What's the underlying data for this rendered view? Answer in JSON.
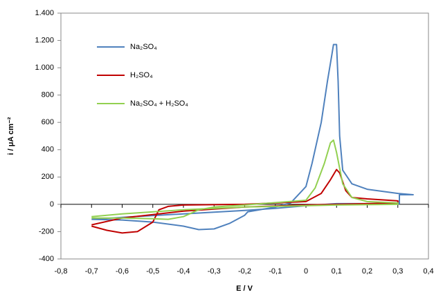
{
  "chart_data": {
    "type": "line",
    "xlabel": "E / V",
    "ylabel": "i / μA cm⁻²",
    "xlim": [
      -0.8,
      0.4
    ],
    "ylim": [
      -400,
      1400
    ],
    "xticks": [
      {
        "value": -0.8,
        "label": "-0,8"
      },
      {
        "value": -0.7,
        "label": "-0,7"
      },
      {
        "value": -0.6,
        "label": "-0,6"
      },
      {
        "value": -0.5,
        "label": "-0,5"
      },
      {
        "value": -0.4,
        "label": "-0,4"
      },
      {
        "value": -0.3,
        "label": "-0,3"
      },
      {
        "value": -0.2,
        "label": "-0,2"
      },
      {
        "value": -0.1,
        "label": "-0,1"
      },
      0,
      {
        "value": 0.1,
        "label": "0,1"
      },
      {
        "value": 0.2,
        "label": "0,2"
      },
      {
        "value": 0.3,
        "label": "0,3"
      },
      {
        "value": 0.4,
        "label": "0,4"
      }
    ],
    "yticks": [
      -400,
      -200,
      0,
      200,
      400,
      600,
      800,
      {
        "value": 1000,
        "label": "1.000"
      },
      {
        "value": 1200,
        "label": "1.200"
      },
      {
        "value": 1400,
        "label": "1.400"
      }
    ],
    "legend": "upper left",
    "series": [
      {
        "name": "Na₂SO₄",
        "color": "#4f81bd",
        "x": [
          -0.7,
          -0.6,
          -0.5,
          -0.4,
          -0.35,
          -0.3,
          -0.25,
          -0.2,
          -0.19,
          -0.1,
          -0.05,
          0,
          0.02,
          0.05,
          0.07,
          0.085,
          0.09,
          0.1,
          0.105,
          0.11,
          0.12,
          0.15,
          0.2,
          0.3,
          0.35,
          0.305,
          0.305,
          0.2,
          0.1,
          0,
          -0.1,
          -0.2,
          -0.4,
          -0.6,
          -0.7
        ],
        "values": [
          -110,
          -115,
          -130,
          -160,
          -185,
          -180,
          -140,
          -80,
          -55,
          -20,
          10,
          130,
          300,
          600,
          900,
          1100,
          1170,
          1170,
          900,
          500,
          250,
          150,
          110,
          80,
          70,
          70,
          5,
          5,
          5,
          -10,
          -30,
          -45,
          -70,
          -95,
          -110
        ]
      },
      {
        "name": "H₂SO₄",
        "color": "#c00000",
        "x": [
          -0.7,
          -0.65,
          -0.6,
          -0.55,
          -0.5,
          -0.48,
          -0.45,
          -0.4,
          -0.2,
          0,
          0.05,
          0.08,
          0.1,
          0.11,
          0.13,
          0.15,
          0.2,
          0.3,
          0.3,
          0.1,
          0,
          -0.2,
          -0.4,
          -0.6,
          -0.7
        ],
        "values": [
          -160,
          -190,
          -210,
          -200,
          -130,
          -40,
          -15,
          -5,
          0,
          20,
          80,
          180,
          255,
          230,
          100,
          50,
          40,
          25,
          10,
          0,
          -5,
          -20,
          -50,
          -100,
          -150
        ]
      },
      {
        "name": "Na₂SO₄ + H₂SO₄",
        "color": "#92d050",
        "x": [
          -0.7,
          -0.6,
          -0.5,
          -0.45,
          -0.4,
          -0.35,
          -0.3,
          -0.2,
          0,
          0.03,
          0.06,
          0.08,
          0.09,
          0.1,
          0.12,
          0.15,
          0.2,
          0.3,
          0.3,
          0.1,
          0,
          -0.2,
          -0.4,
          -0.6,
          -0.7
        ],
        "values": [
          -100,
          -100,
          -105,
          -110,
          -90,
          -40,
          -20,
          -5,
          30,
          120,
          300,
          450,
          470,
          380,
          150,
          50,
          20,
          10,
          0,
          -5,
          -10,
          -20,
          -40,
          -70,
          -90
        ]
      }
    ]
  }
}
